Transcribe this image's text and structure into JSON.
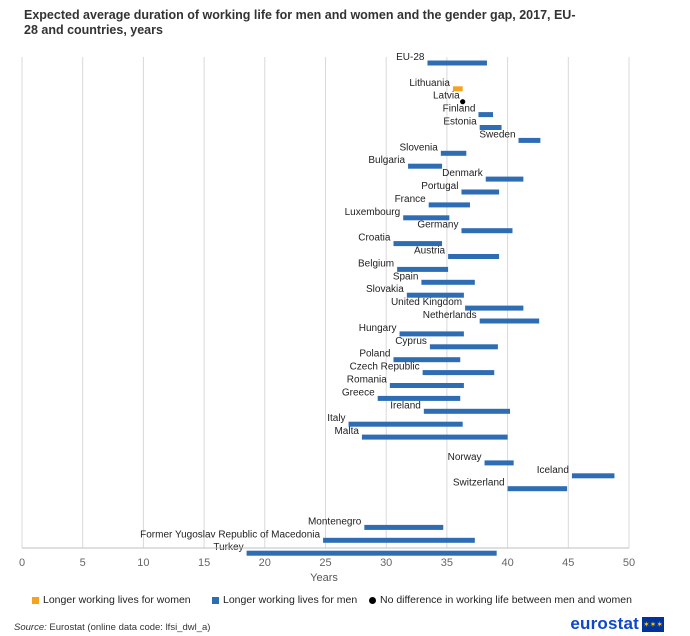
{
  "title": "Expected average duration of working life for men and women and the gender gap, 2017, EU-28 and countries, years",
  "source": {
    "prefix": "Source:",
    "text": " Eurostat (online data code: lfsi_dwl_a)"
  },
  "logo_text": "eurostat",
  "colors": {
    "women_longer": "#f5a21e",
    "men_longer": "#2e6cb4",
    "no_difference": "#000000",
    "grid": "#d9d9d9"
  },
  "legend": [
    {
      "label": "Longer working lives for women",
      "key": "women_longer",
      "shape": "square"
    },
    {
      "label": "Longer working lives for men",
      "key": "men_longer",
      "shape": "square"
    },
    {
      "label": "No difference in working life between men and women",
      "key": "no_difference",
      "shape": "dot"
    }
  ],
  "chart_data": {
    "type": "bar",
    "orientation": "horizontal-range",
    "title": "Expected average duration of working life for men and women and the gender gap, 2017, EU-28 and countries, years",
    "xlabel": "Years",
    "xlim": [
      0,
      50
    ],
    "xticks": [
      0,
      5,
      10,
      15,
      20,
      25,
      30,
      35,
      40,
      45,
      50
    ],
    "grid": "vertical",
    "legend_position": "bottom",
    "rows": [
      {
        "label": "EU-28",
        "women": 33.4,
        "men": 38.3,
        "type": "men_longer"
      },
      {
        "label": "",
        "spacer": true
      },
      {
        "label": "Lithuania",
        "women": 36.3,
        "men": 35.5,
        "type": "women_longer"
      },
      {
        "label": "Latvia",
        "women": 36.3,
        "men": 36.3,
        "type": "no_difference"
      },
      {
        "label": "Finland",
        "women": 37.6,
        "men": 38.8,
        "type": "men_longer"
      },
      {
        "label": "Estonia",
        "women": 37.7,
        "men": 39.5,
        "type": "men_longer"
      },
      {
        "label": "Sweden",
        "women": 40.9,
        "men": 42.7,
        "type": "men_longer"
      },
      {
        "label": "Slovenia",
        "women": 34.5,
        "men": 36.6,
        "type": "men_longer"
      },
      {
        "label": "Bulgaria",
        "women": 31.8,
        "men": 34.6,
        "type": "men_longer"
      },
      {
        "label": "Denmark",
        "women": 38.2,
        "men": 41.3,
        "type": "men_longer"
      },
      {
        "label": "Portugal",
        "women": 36.2,
        "men": 39.3,
        "type": "men_longer"
      },
      {
        "label": "France",
        "women": 33.5,
        "men": 36.9,
        "type": "men_longer"
      },
      {
        "label": "Luxembourg",
        "women": 31.4,
        "men": 35.2,
        "type": "men_longer"
      },
      {
        "label": "Germany",
        "women": 36.2,
        "men": 40.4,
        "type": "men_longer"
      },
      {
        "label": "Croatia",
        "women": 30.6,
        "men": 34.6,
        "type": "men_longer"
      },
      {
        "label": "Austria",
        "women": 35.1,
        "men": 39.3,
        "type": "men_longer"
      },
      {
        "label": "Belgium",
        "women": 30.9,
        "men": 35.1,
        "type": "men_longer"
      },
      {
        "label": "Spain",
        "women": 32.9,
        "men": 37.3,
        "type": "men_longer"
      },
      {
        "label": "Slovakia",
        "women": 31.7,
        "men": 36.4,
        "type": "men_longer"
      },
      {
        "label": "United Kingdom",
        "women": 36.5,
        "men": 41.3,
        "type": "men_longer"
      },
      {
        "label": "Netherlands",
        "women": 37.7,
        "men": 42.6,
        "type": "men_longer"
      },
      {
        "label": "Hungary",
        "women": 31.1,
        "men": 36.4,
        "type": "men_longer"
      },
      {
        "label": "Cyprus",
        "women": 33.6,
        "men": 39.2,
        "type": "men_longer"
      },
      {
        "label": "Poland",
        "women": 30.6,
        "men": 36.1,
        "type": "men_longer"
      },
      {
        "label": "Czech Republic",
        "women": 33.0,
        "men": 38.9,
        "type": "men_longer"
      },
      {
        "label": "Romania",
        "women": 30.3,
        "men": 36.4,
        "type": "men_longer"
      },
      {
        "label": "Greece",
        "women": 29.3,
        "men": 36.1,
        "type": "men_longer"
      },
      {
        "label": "Ireland",
        "women": 33.1,
        "men": 40.2,
        "type": "men_longer"
      },
      {
        "label": "Italy",
        "women": 26.9,
        "men": 36.3,
        "type": "men_longer"
      },
      {
        "label": "Malta",
        "women": 28.0,
        "men": 40.0,
        "type": "men_longer"
      },
      {
        "label": "",
        "spacer": true
      },
      {
        "label": "Norway",
        "women": 38.1,
        "men": 40.5,
        "type": "men_longer"
      },
      {
        "label": "Iceland",
        "women": 45.3,
        "men": 48.8,
        "type": "men_longer"
      },
      {
        "label": "Switzerland",
        "women": 40.0,
        "men": 44.9,
        "type": "men_longer"
      },
      {
        "label": "",
        "spacer": true
      },
      {
        "label": "",
        "spacer": true
      },
      {
        "label": "Montenegro",
        "women": 28.2,
        "men": 34.7,
        "type": "men_longer"
      },
      {
        "label": "Former Yugoslav Republic of Macedonia",
        "women": 24.8,
        "men": 37.3,
        "type": "men_longer"
      },
      {
        "label": "Turkey",
        "women": 18.5,
        "men": 39.1,
        "type": "men_longer"
      }
    ]
  }
}
